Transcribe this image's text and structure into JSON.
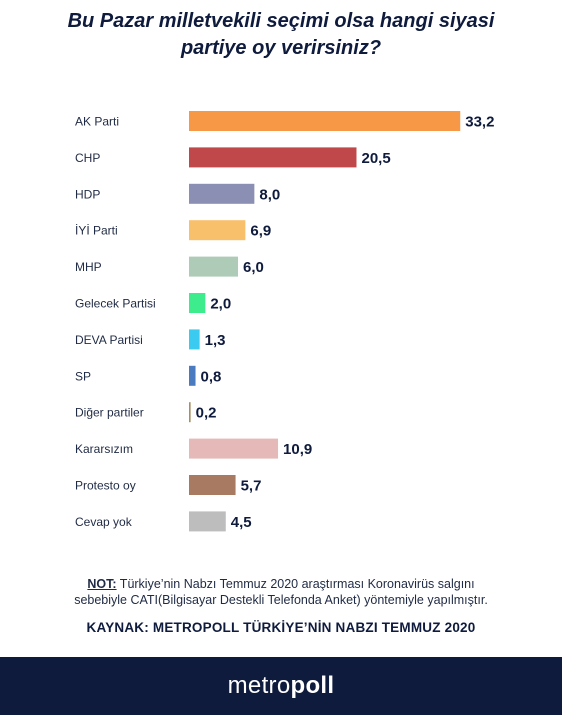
{
  "header": {
    "title_line1": "Bu Pazar milletvekili seçimi olsa hangi siyasi",
    "title_line2": "partiye oy verirsiniz?"
  },
  "chart_data": {
    "type": "bar",
    "orientation": "horizontal",
    "categories": [
      "AK Parti",
      "CHP",
      "HDP",
      "İYİ Parti",
      "MHP",
      "Gelecek Partisi",
      "DEVA Partisi",
      "SP",
      "Diğer partiler",
      "Kararsızım",
      "Protesto oy",
      "Cevap yok"
    ],
    "values": [
      33.2,
      20.5,
      8.0,
      6.9,
      6.0,
      2.0,
      1.3,
      0.8,
      0.2,
      10.9,
      5.7,
      4.5
    ],
    "value_labels": [
      "33,2",
      "20,5",
      "8,0",
      "6,9",
      "6,0",
      "2,0",
      "1,3",
      "0,8",
      "0,2",
      "10,9",
      "5,7",
      "4,5"
    ],
    "colors": [
      "#f79846",
      "#c0474a",
      "#8b8fb3",
      "#f9c06b",
      "#aecbb7",
      "#3ded8d",
      "#3ccbf0",
      "#4a7bc0",
      "#a88f63",
      "#e6b9b9",
      "#a87a62",
      "#bdbdbd"
    ],
    "grid": false,
    "legend": "none"
  },
  "note": {
    "label": "NOT:",
    "line1": " Türkiye’nin Nabzı Temmuz 2020 araştırması Koronavirüs salgını",
    "line2": "sebebiyle CATI(Bilgisayar Destekli Telefonda Anket) yöntemiyle yapılmıştır."
  },
  "source": "KAYNAK: METROPOLL TÜRKİYE’NİN NABZI TEMMUZ 2020",
  "footer": {
    "logo_light": "metro",
    "logo_bold": "poll",
    "bg_color": "#0f1b3d"
  }
}
